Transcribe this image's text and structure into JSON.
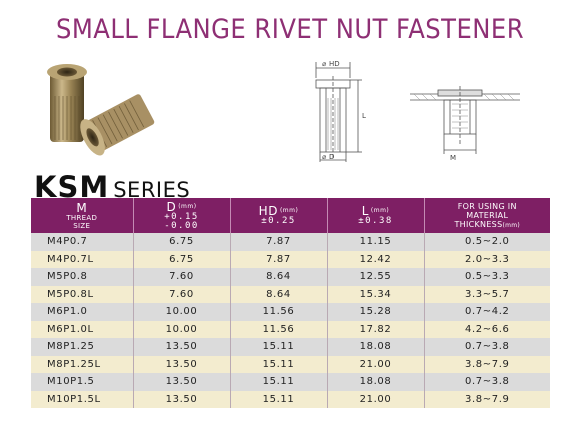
{
  "title": "SMALL FLANGE RIVET NUT  FASTENER",
  "series": {
    "code": "KSM",
    "word": "SERIES"
  },
  "drawing": {
    "hd_label": "HD",
    "l_label": "L",
    "d_label": "D",
    "m_label": "M"
  },
  "headers": {
    "m": {
      "main": "M",
      "sub1": "THREAD",
      "sub2": "SIZE"
    },
    "d": {
      "main": "D",
      "unit": "(mm)",
      "tol1": "+0.15",
      "tol2": "-0.00"
    },
    "hd": {
      "main": "HD",
      "unit": "(mm)",
      "tol": "±0.25"
    },
    "l": {
      "main": "L",
      "unit": "(mm)",
      "tol": "±0.38"
    },
    "thickness": {
      "line1": "FOR USING IN",
      "line2": "MATERIAL",
      "line3": "THICKNESS",
      "unit": "(mm)"
    }
  },
  "rows": [
    [
      "M4P0.7",
      "6.75",
      "7.87",
      "11.15",
      "0.5~2.0"
    ],
    [
      "M4P0.7L",
      "6.75",
      "7.87",
      "12.42",
      "2.0~3.3"
    ],
    [
      "M5P0.8",
      "7.60",
      "8.64",
      "12.55",
      "0.5~3.3"
    ],
    [
      "M5P0.8L",
      "7.60",
      "8.64",
      "15.34",
      "3.3~5.7"
    ],
    [
      "M6P1.0",
      "10.00",
      "11.56",
      "15.28",
      "0.7~4.2"
    ],
    [
      "M6P1.0L",
      "10.00",
      "11.56",
      "17.82",
      "4.2~6.6"
    ],
    [
      "M8P1.25",
      "13.50",
      "15.11",
      "18.08",
      "0.7~3.8"
    ],
    [
      "M8P1.25L",
      "13.50",
      "15.11",
      "21.00",
      "3.8~7.9"
    ],
    [
      "M10P1.5",
      "13.50",
      "15.11",
      "18.08",
      "0.7~3.8"
    ],
    [
      "M10P1.5L",
      "13.50",
      "15.11",
      "21.00",
      "3.8~7.9"
    ]
  ],
  "colors": {
    "title": "#8e2f74",
    "header_bg": "#7e1f64",
    "row_odd": "#dbdbdb",
    "row_even": "#f3eccf"
  }
}
